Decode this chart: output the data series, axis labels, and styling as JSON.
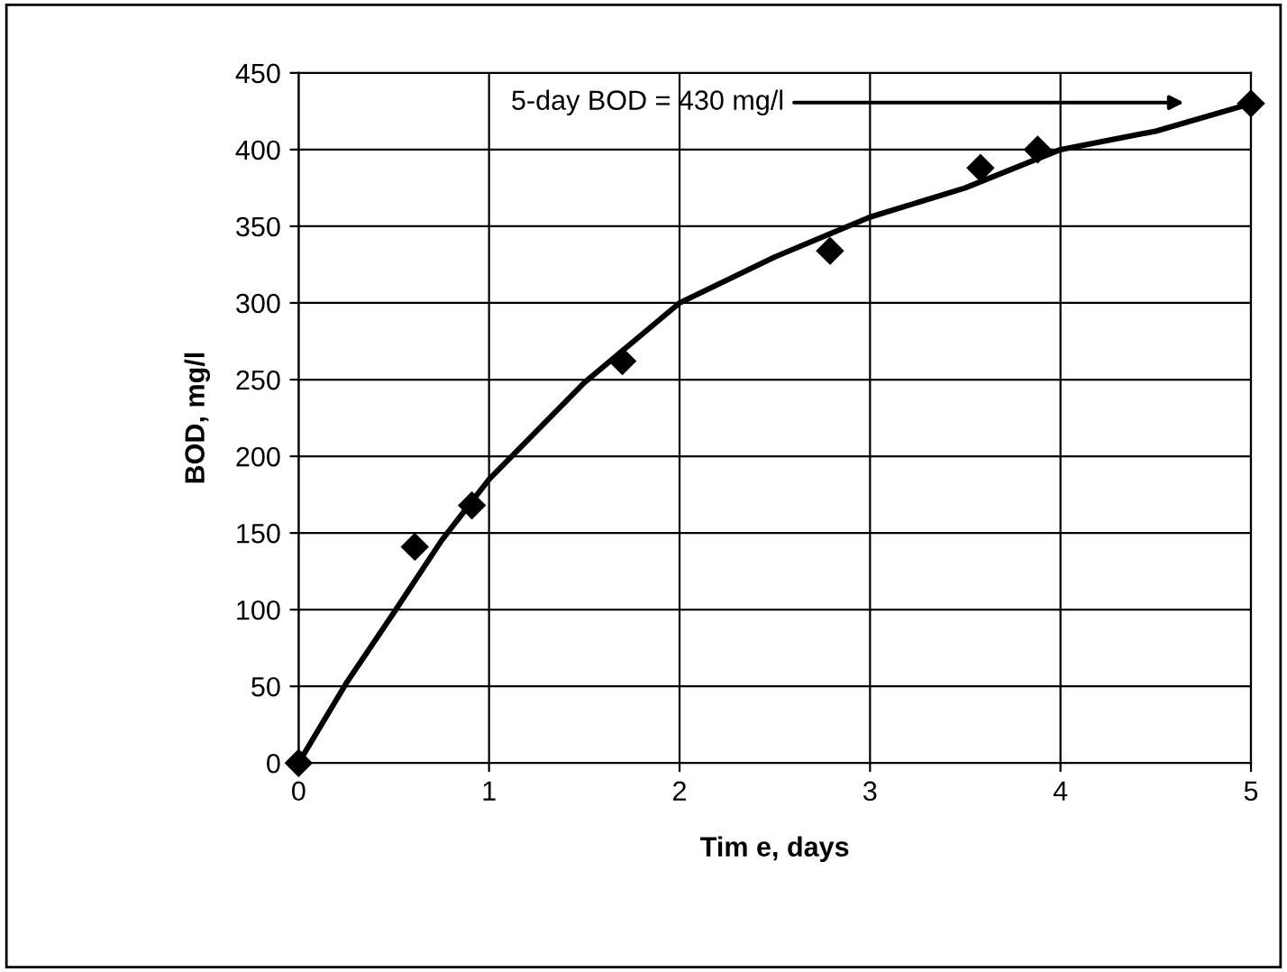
{
  "chart_data": {
    "type": "scatter",
    "xlabel": "Tim e, days",
    "ylabel": "BOD, mg/l",
    "xlim": [
      0,
      5
    ],
    "ylim": [
      0,
      450
    ],
    "xticks": [
      0,
      1,
      2,
      3,
      4,
      5
    ],
    "yticks": [
      0,
      50,
      100,
      150,
      200,
      250,
      300,
      350,
      400,
      450
    ],
    "grid": true,
    "marker": "diamond",
    "series": [
      {
        "color": "#000000",
        "x": [
          0,
          0.61,
          0.91,
          1.7,
          2.79,
          3.58,
          3.88,
          5
        ],
        "values": [
          0,
          141,
          168,
          262,
          334,
          388,
          400,
          430
        ]
      },
      {
        "type": "line",
        "color": "#000000",
        "marker": "none",
        "x": [
          0,
          0.25,
          0.5,
          0.75,
          1,
          1.5,
          2,
          2.5,
          3,
          3.5,
          4,
          4.5,
          5
        ],
        "values": [
          0,
          52,
          98,
          145,
          185,
          248,
          300,
          330,
          356,
          375,
          400,
          412,
          430
        ]
      }
    ],
    "annotations": [
      "5-day BOD = 430 mg/l"
    ]
  }
}
